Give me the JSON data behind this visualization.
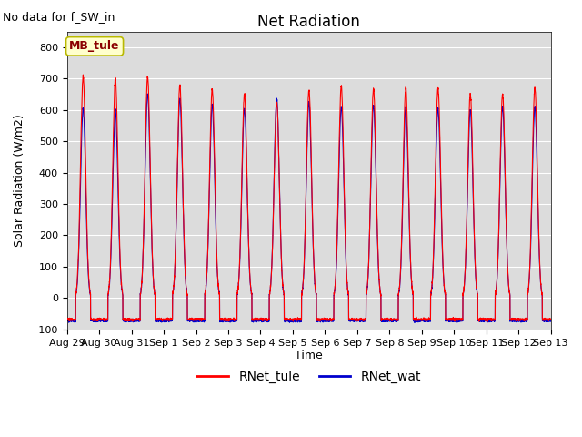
{
  "title": "Net Radiation",
  "note": "No data for f_SW_in",
  "ylabel": "Solar Radiation (W/m2)",
  "xlabel": "Time",
  "ylim": [
    -100,
    850
  ],
  "yticks": [
    -100,
    0,
    100,
    200,
    300,
    400,
    500,
    600,
    700,
    800
  ],
  "tick_labels_x": [
    "Aug 29",
    "Aug 30",
    "Aug 31",
    "Sep 1",
    "Sep 2",
    "Sep 3",
    "Sep 4",
    "Sep 5",
    "Sep 6",
    "Sep 7",
    "Sep 8",
    "Sep 9",
    "Sep 10",
    "Sep 11",
    "Sep 12",
    "Sep 13"
  ],
  "legend_labels": [
    "RNet_tule",
    "RNet_wat"
  ],
  "color_tule": "#ff0000",
  "color_wat": "#0000cd",
  "bg_color": "#dcdcdc",
  "n_days": 15,
  "pts_per_day": 288,
  "title_fontsize": 12,
  "label_fontsize": 9,
  "tick_fontsize": 8,
  "note_fontsize": 9,
  "mb_tule_label": "MB_tule",
  "peaks_tule": [
    705,
    700,
    705,
    680,
    665,
    650,
    625,
    665,
    675,
    665,
    670,
    670,
    650,
    650,
    670,
    665
  ],
  "peaks_wat": [
    605,
    600,
    650,
    635,
    615,
    605,
    635,
    625,
    610,
    615,
    610,
    605,
    600,
    610,
    610,
    605
  ],
  "night_tule": -68,
  "night_wat": -72
}
